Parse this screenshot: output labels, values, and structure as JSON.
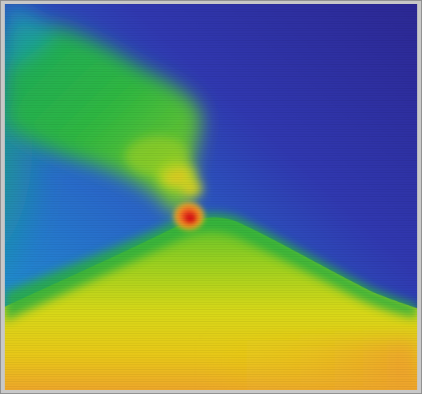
{
  "image": {
    "subject": "",
    "palette": {
      "cold": "#2a2aa0",
      "cool": "#2878d8",
      "mid": "#20b848",
      "warm": "#d8e018",
      "hot": "#f0a020",
      "hottest": "#e02818"
    }
  }
}
